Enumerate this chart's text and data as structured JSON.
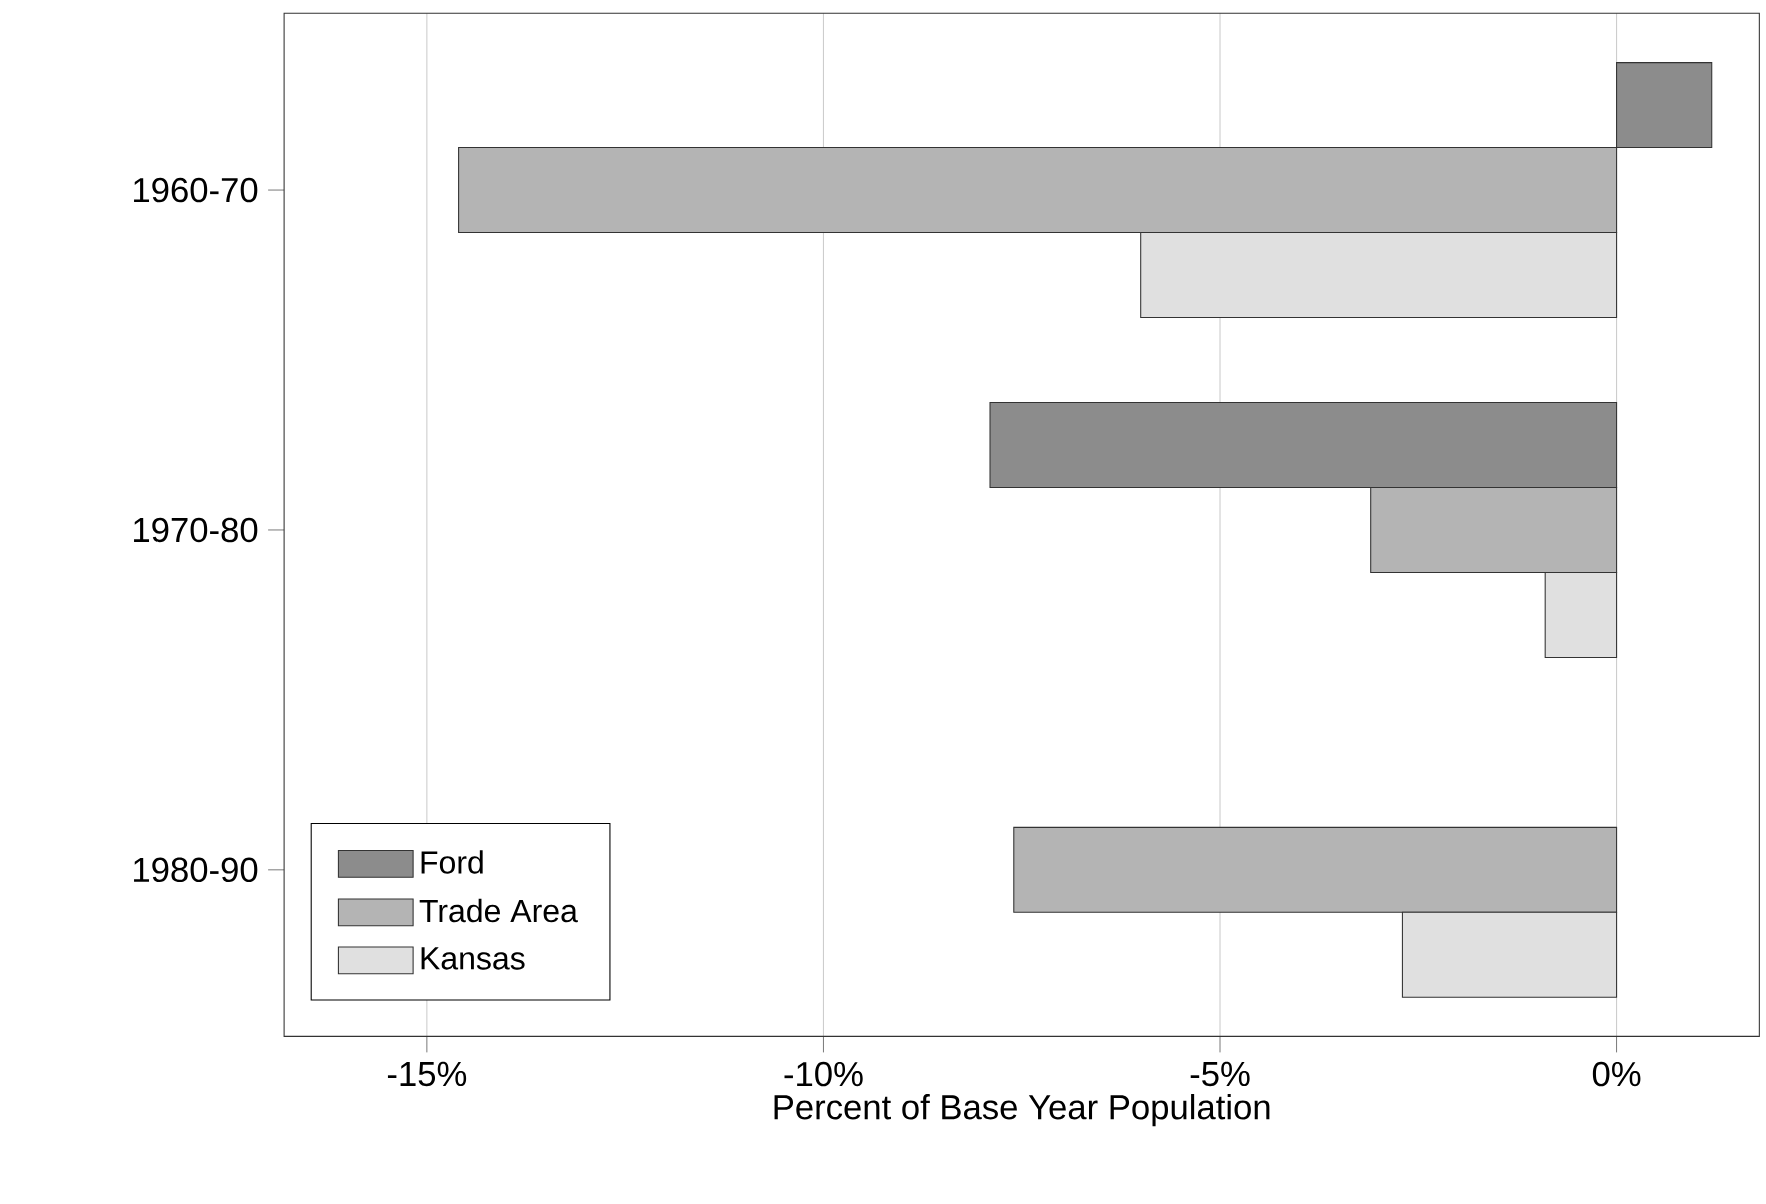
{
  "chart_data": {
    "type": "bar",
    "orientation": "horizontal",
    "xlabel": "Percent of Base Year Population",
    "categories": [
      "1960-70",
      "1970-80",
      "1980-90"
    ],
    "series": [
      {
        "name": "Ford",
        "color": "#8c8c8c",
        "values": [
          1.2,
          -7.9,
          null
        ]
      },
      {
        "name": "Trade Area",
        "color": "#b4b4b4",
        "values": [
          -14.6,
          -3.1,
          -7.6
        ]
      },
      {
        "name": "Kansas",
        "color": "#e0e0e0",
        "values": [
          -6.0,
          -0.9,
          -2.7
        ]
      }
    ],
    "xlim": [
      -16.8,
      1.8
    ],
    "xticks": [
      {
        "value": -15,
        "label": "-15%"
      },
      {
        "value": -10,
        "label": "-10%"
      },
      {
        "value": -5,
        "label": "-5%"
      },
      {
        "value": 0,
        "label": "0%"
      }
    ],
    "grid": "x",
    "legend": "bottom left"
  }
}
